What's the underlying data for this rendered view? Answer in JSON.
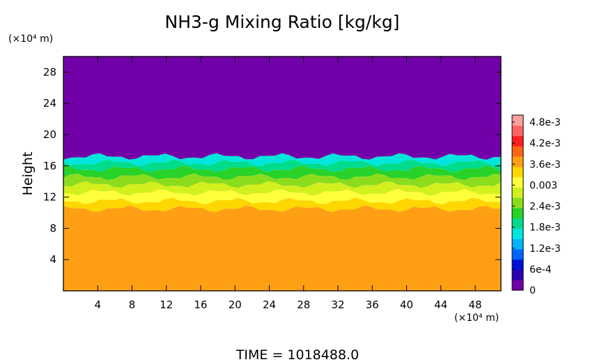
{
  "chart_data": {
    "type": "heatmap",
    "title": "NH3-g Mixing Ratio [kg/kg]",
    "ylabel": "Height",
    "y_unit_label": "(×10⁴ m)",
    "x_unit_label": "(×10⁴ m)",
    "xlim": [
      0,
      51
    ],
    "ylim": [
      0,
      30
    ],
    "x_ticks": [
      4,
      8,
      12,
      16,
      20,
      24,
      28,
      32,
      36,
      40,
      44,
      48
    ],
    "y_ticks": [
      4,
      8,
      12,
      16,
      20,
      24,
      28
    ],
    "x_tick_labels": [
      "4",
      "8",
      "12",
      "16",
      "20",
      "24",
      "28",
      "32",
      "36",
      "40",
      "44",
      "48"
    ],
    "y_tick_labels": [
      "4",
      "8",
      "12",
      "16",
      "20",
      "24",
      "28"
    ],
    "colorbar": {
      "range": [
        0,
        0.005
      ],
      "ticks": [
        0,
        0.0006,
        0.0012,
        0.0018,
        0.0024,
        0.003,
        0.0036,
        0.0042,
        0.0048
      ],
      "tick_labels": [
        "0",
        "6e-4",
        "1.2e-3",
        "1.8e-3",
        "2.4e-3",
        "0.003",
        "3.6e-3",
        "4.2e-3",
        "4.8e-3"
      ],
      "colors": [
        "#7200a8",
        "#2d00b4",
        "#0010d8",
        "#0064ff",
        "#00b4ff",
        "#00e6dc",
        "#00dc8c",
        "#28d228",
        "#8cdc1e",
        "#d2f01e",
        "#ffff3c",
        "#ffd700",
        "#ffa014",
        "#ff6414",
        "#ff1e1e",
        "#ff6464",
        "#ffa0a0"
      ]
    },
    "layers": [
      {
        "from": 0,
        "to": 10.5,
        "value": 0.0042,
        "color": "#ffa014"
      },
      {
        "from": 10.5,
        "to": 11.5,
        "value": 0.0039,
        "color": "#ffd700"
      },
      {
        "from": 11.5,
        "to": 12.6,
        "value": 0.0036,
        "color": "#ffff3c"
      },
      {
        "from": 12.6,
        "to": 13.6,
        "value": 0.0033,
        "color": "#d2f01e"
      },
      {
        "from": 13.6,
        "to": 14.6,
        "value": 0.003,
        "color": "#8cdc1e"
      },
      {
        "from": 14.6,
        "to": 15.6,
        "value": 0.0027,
        "color": "#28d228"
      },
      {
        "from": 15.6,
        "to": 16.4,
        "value": 0.0024,
        "color": "#00dc8c"
      },
      {
        "from": 16.4,
        "to": 17.2,
        "value": 0.0018,
        "color": "#00e6dc"
      },
      {
        "from": 17.2,
        "to": 30,
        "value": 0,
        "color": "#7200a8"
      }
    ],
    "grid": false
  },
  "footer": {
    "time_label": "TIME  =  1018488.0"
  }
}
